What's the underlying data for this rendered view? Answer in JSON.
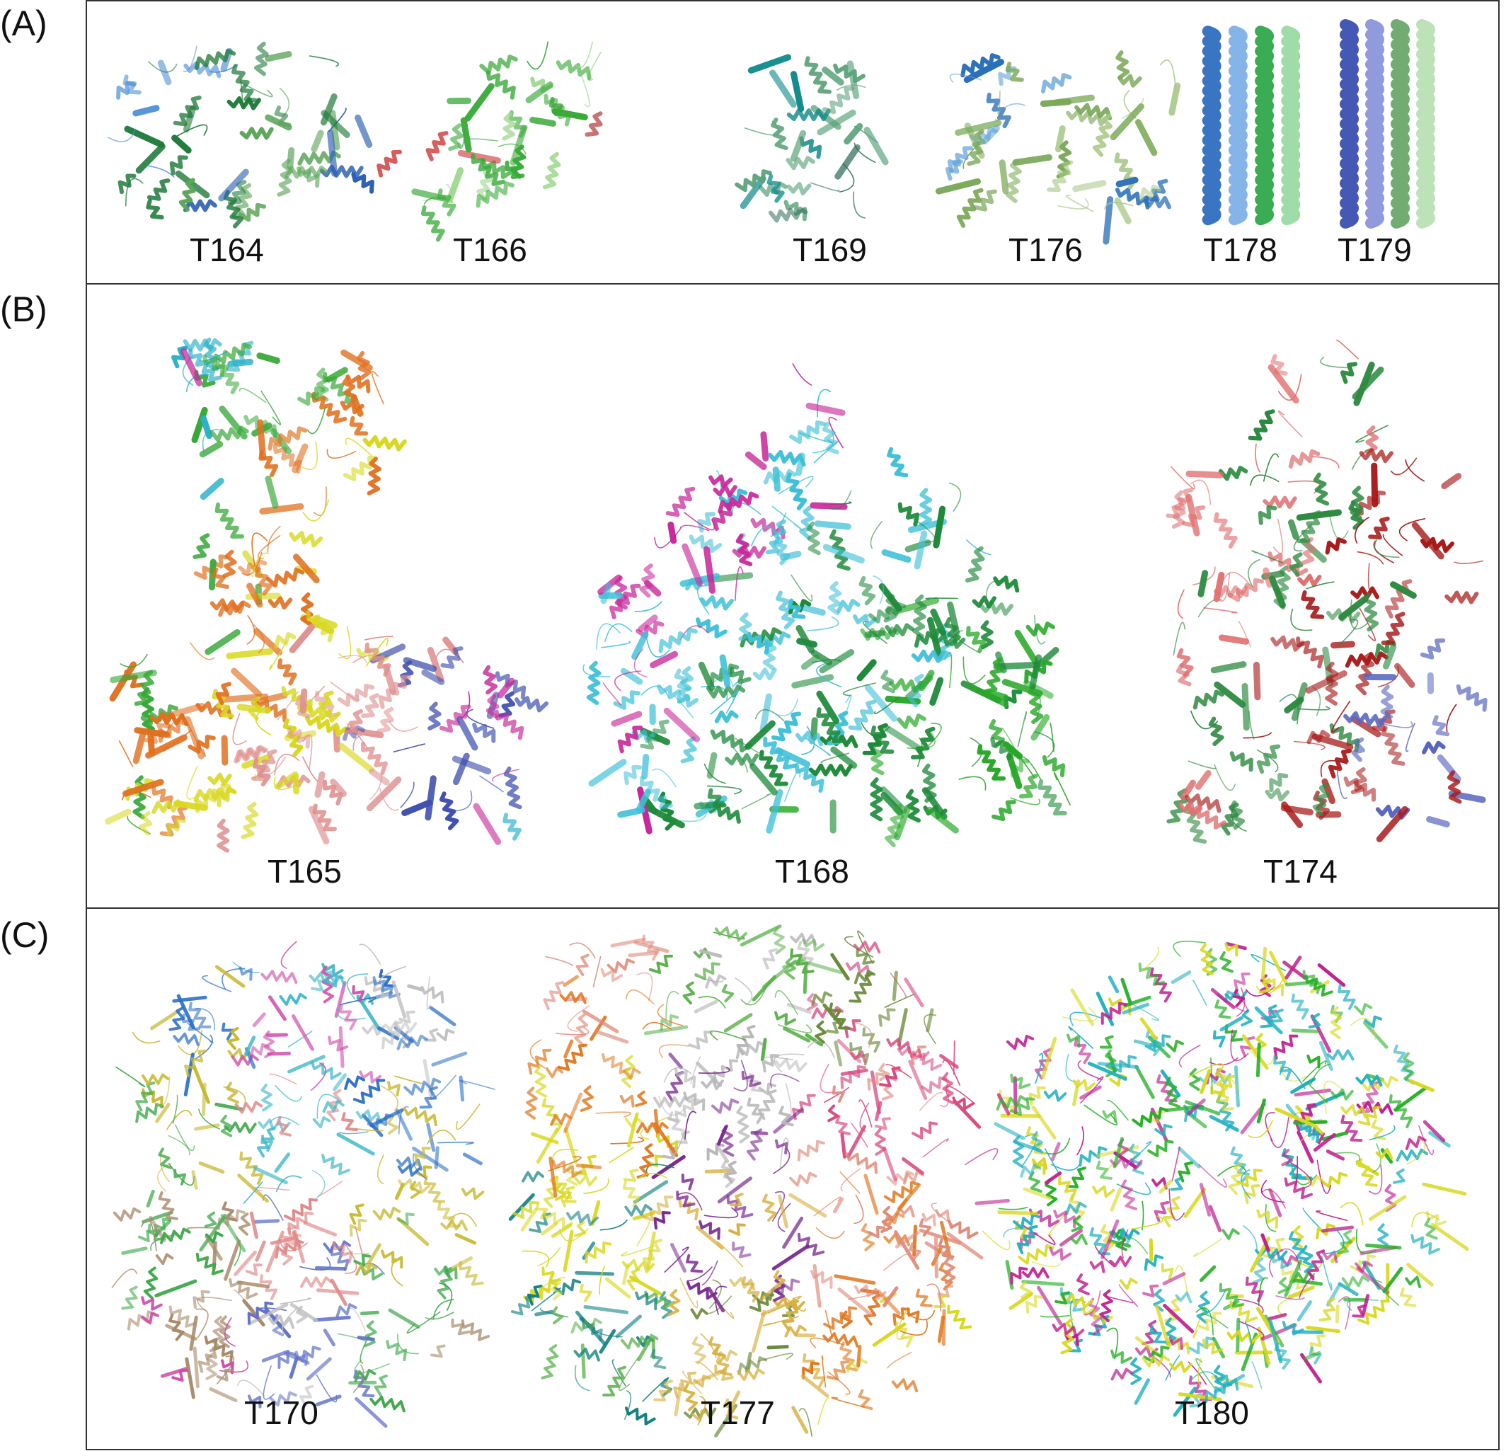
{
  "panels": [
    {
      "label": "(A)",
      "structures": [
        {
          "id": "T164",
          "colors": [
            "#2b5fb0",
            "#4c8ed6",
            "#1f7a3a",
            "#5ca55a"
          ]
        },
        {
          "id": "T166",
          "colors": [
            "#a31818",
            "#d04040",
            "#3aaa3a",
            "#9fd890"
          ]
        },
        {
          "id": "T169",
          "colors": [
            "#1e7a3a",
            "#0f8a8a",
            "#5aa27a",
            "#2d6b55"
          ]
        },
        {
          "id": "T176",
          "colors": [
            "#2a6fb8",
            "#5fa0d8",
            "#7aa858",
            "#a8c888"
          ]
        },
        {
          "id": "T178",
          "colors": [
            "#2f6ec0",
            "#5c9be0",
            "#2fa84a",
            "#7fd08a"
          ]
        },
        {
          "id": "T179",
          "colors": [
            "#3a4fb0",
            "#6a7ad0",
            "#6aa868",
            "#a8d8a0"
          ]
        }
      ]
    },
    {
      "label": "(B)",
      "structures": [
        {
          "id": "T165",
          "colors": [
            "#c8289a",
            "#2ab0c8",
            "#38a838",
            "#e07020",
            "#d8d820",
            "#e09090",
            "#4050b0"
          ]
        },
        {
          "id": "T168",
          "colors": [
            "#28a828",
            "#c8289a",
            "#40c0d8",
            "#1e8a3a"
          ]
        },
        {
          "id": "T174",
          "colors": [
            "#5866c0",
            "#e07070",
            "#2e8a40",
            "#a81818"
          ]
        }
      ]
    },
    {
      "label": "(C)",
      "structures": [
        {
          "id": "T170",
          "colors": [
            "#2a6ec8",
            "#c8b830",
            "#3ea84a",
            "#a88a6a",
            "#d04aa8",
            "#40b8c8",
            "#e08a8a",
            "#6070c8",
            "#c0c0c0"
          ]
        },
        {
          "id": "T177",
          "colors": [
            "#e08a7a",
            "#e07820",
            "#d8d820",
            "#108080",
            "#58b048",
            "#b8b8b8",
            "#7a2a90",
            "#d8b040",
            "#6a8a3a",
            "#d84a80"
          ]
        },
        {
          "id": "T180",
          "colors": [
            "#28b028",
            "#20b0c0",
            "#c02090",
            "#d8d820"
          ]
        }
      ]
    }
  ]
}
